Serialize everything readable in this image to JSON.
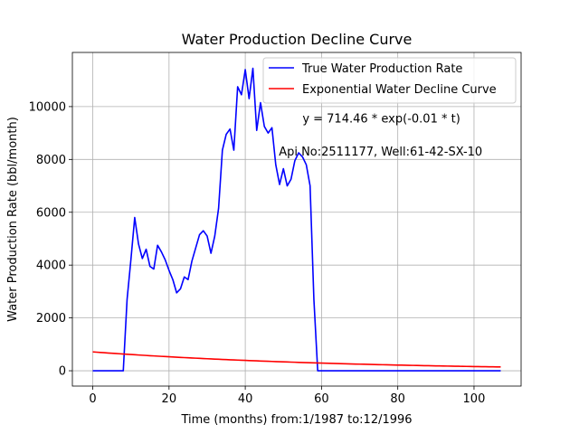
{
  "chart_data": {
    "type": "line",
    "title": "Water Production Decline Curve",
    "xlabel": "Time (months) from:1/1987 to:12/1996",
    "ylabel": "Water Production Rate (bbl/month)",
    "xlim": [
      -5.35,
      112.35
    ],
    "ylim": [
      -580,
      12050
    ],
    "xticks": [
      0,
      20,
      40,
      60,
      80,
      100
    ],
    "yticks": [
      0,
      2000,
      4000,
      6000,
      8000,
      10000
    ],
    "grid": true,
    "legend_position": "top-right",
    "annotations": [
      {
        "text": "y = 714.46 * exp(-0.01 * t)",
        "x": 55,
        "y": 9400
      },
      {
        "text": "Api No:2511177, Well:61-42-SX-10",
        "x": 48.8,
        "y": 8150
      }
    ],
    "series": [
      {
        "name": "True Water Production Rate",
        "color": "#0000ff",
        "x": [
          0,
          1,
          2,
          3,
          4,
          5,
          6,
          7,
          8,
          9,
          10,
          11,
          12,
          13,
          14,
          15,
          16,
          17,
          18,
          19,
          20,
          21,
          22,
          23,
          24,
          25,
          26,
          27,
          28,
          29,
          30,
          31,
          32,
          33,
          34,
          35,
          36,
          37,
          38,
          39,
          40,
          41,
          42,
          43,
          44,
          45,
          46,
          47,
          48,
          49,
          50,
          51,
          52,
          53,
          54,
          55,
          56,
          57,
          58,
          59,
          60,
          61,
          62,
          63,
          64,
          65,
          66,
          67,
          68,
          69,
          70,
          71,
          72,
          73,
          74,
          75,
          76,
          77,
          78,
          79,
          80,
          81,
          82,
          83,
          84,
          85,
          86,
          87,
          88,
          89,
          90,
          91,
          92,
          93,
          94,
          95,
          96,
          97,
          98,
          99,
          100,
          101,
          102,
          103,
          104,
          105,
          106,
          107
        ],
        "y": [
          0,
          0,
          0,
          0,
          0,
          0,
          0,
          0,
          0,
          2700,
          4200,
          5800,
          4800,
          4250,
          4600,
          3950,
          3850,
          4750,
          4500,
          4200,
          3800,
          3450,
          2950,
          3100,
          3550,
          3450,
          4150,
          4650,
          5150,
          5300,
          5100,
          4450,
          5100,
          6150,
          8350,
          8950,
          9150,
          8350,
          10750,
          10450,
          11400,
          10300,
          11450,
          9100,
          10150,
          9250,
          9000,
          9200,
          7800,
          7050,
          7650,
          7000,
          7250,
          7950,
          8250,
          8100,
          7800,
          7000,
          2700,
          0,
          0,
          0,
          0,
          0,
          0,
          0,
          0,
          0,
          0,
          0,
          0,
          0,
          0,
          0,
          0,
          0,
          0,
          0,
          0,
          0,
          0,
          0,
          0,
          0,
          0,
          0,
          0,
          0,
          0,
          0,
          0,
          0,
          0,
          0,
          0,
          0,
          0,
          0,
          0,
          0,
          0,
          0,
          0,
          0,
          0,
          0,
          0,
          0
        ]
      },
      {
        "name": "Exponential Water Decline Curve",
        "color": "#ff0000",
        "function": {
          "a": 714.46,
          "b": -0.015
        },
        "x_range": [
          0,
          107
        ]
      }
    ]
  }
}
